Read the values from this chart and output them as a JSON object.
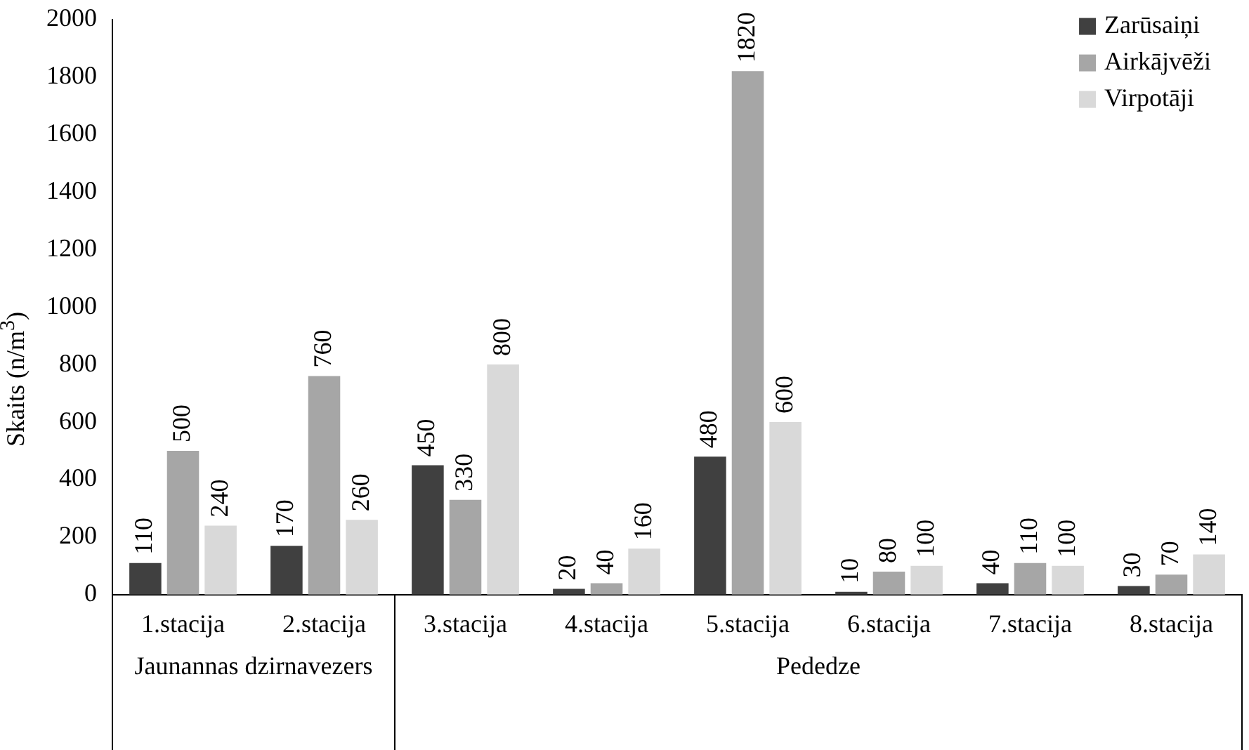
{
  "chart_data": {
    "type": "bar",
    "ylabel": "Skaits (n/m$^{3}$)",
    "categories": [
      "1.stacija",
      "2.stacija",
      "3.stacija",
      "4.stacija",
      "5.stacija",
      "6.stacija",
      "7.stacija",
      "8.stacija"
    ],
    "series": [
      {
        "name": "Zarūsaiņi",
        "color": "#404040",
        "values": [
          110,
          170,
          450,
          20,
          480,
          10,
          40,
          30
        ]
      },
      {
        "name": "Airkājvēži",
        "color": "#a6a6a6",
        "values": [
          500,
          760,
          330,
          40,
          1820,
          80,
          110,
          70
        ]
      },
      {
        "name": "Virpotāji",
        "color": "#d9d9d9",
        "values": [
          240,
          260,
          800,
          160,
          600,
          100,
          100,
          140
        ]
      }
    ],
    "ylim": [
      0,
      2000
    ],
    "yticks": [
      0,
      200,
      400,
      600,
      800,
      1000,
      1200,
      1400,
      1600,
      1800,
      2000
    ],
    "grid": false,
    "legend": "top right",
    "data_labels": true,
    "annotations": [
      "Jaunannas dzirnavezers",
      "Pededze"
    ]
  }
}
